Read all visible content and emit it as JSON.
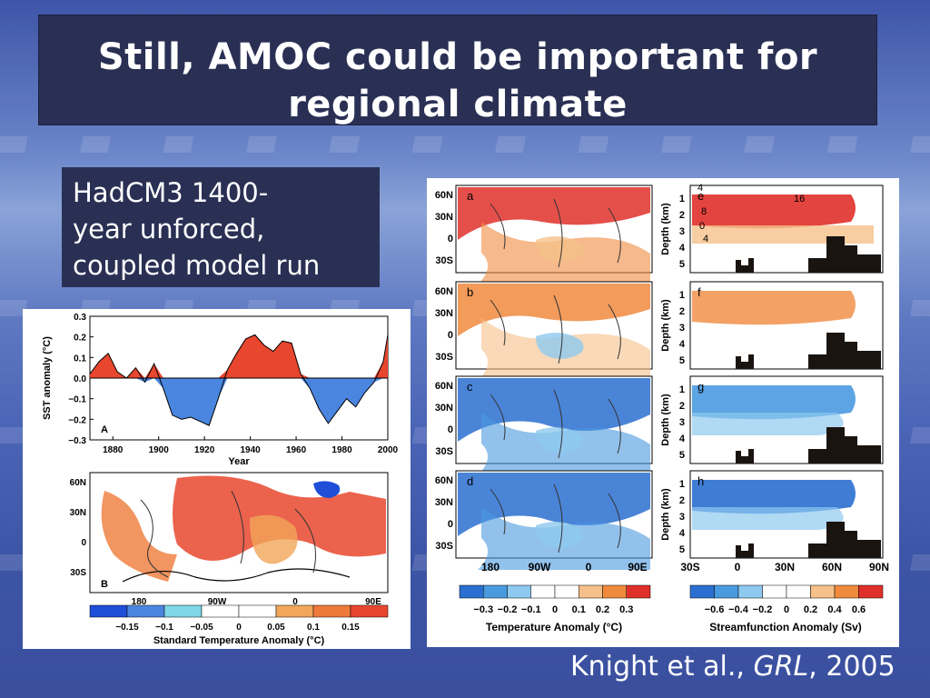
{
  "slide": {
    "title_line1": "Still, AMOC could be important for",
    "title_line2": "regional climate",
    "subtitle_line1": "HadCM3 1400-",
    "subtitle_line2": "year unforced,",
    "subtitle_line3": "coupled model run",
    "citation_authors": "Knight et al., ",
    "citation_journal": "GRL",
    "citation_year": ", 2005"
  },
  "colors": {
    "warm": "#e8462e",
    "cool": "#4a86e0",
    "title_bg": "#2a3054"
  },
  "chart_data": [
    {
      "type": "area",
      "panel_label": "A",
      "ylabel": "SST anomaly (°C)",
      "xlabel": "Year",
      "ylim": [
        -0.3,
        0.3
      ],
      "xlim": [
        1870,
        2000
      ],
      "y_ticks": [
        "0.3",
        "0.2",
        "0.1",
        "0.0",
        "−0.1",
        "−0.2",
        "−0.3"
      ],
      "x_ticks": [
        "1880",
        "1900",
        "1920",
        "1940",
        "1960",
        "1980",
        "2000"
      ],
      "x": [
        1870,
        1874,
        1878,
        1882,
        1886,
        1890,
        1894,
        1898,
        1902,
        1906,
        1910,
        1914,
        1918,
        1922,
        1926,
        1930,
        1934,
        1938,
        1942,
        1946,
        1950,
        1954,
        1958,
        1962,
        1966,
        1970,
        1974,
        1978,
        1982,
        1986,
        1990,
        1994,
        1998,
        2000
      ],
      "y": [
        0.02,
        0.08,
        0.12,
        0.03,
        0.0,
        0.05,
        -0.02,
        0.07,
        -0.05,
        -0.18,
        -0.2,
        -0.19,
        -0.21,
        -0.23,
        -0.1,
        0.04,
        0.12,
        0.19,
        0.21,
        0.16,
        0.13,
        0.18,
        0.17,
        0.02,
        -0.05,
        -0.15,
        -0.22,
        -0.16,
        -0.1,
        -0.14,
        -0.07,
        -0.02,
        0.08,
        0.21
      ],
      "positive_color": "#e8462e",
      "negative_color": "#4a86e0"
    },
    {
      "type": "heatmap",
      "panel_label": "B",
      "lat_ticks": [
        "60N",
        "30N",
        "0",
        "30S"
      ],
      "lon_ticks": [
        "180",
        "90W",
        "0",
        "90E"
      ],
      "colorbar_ticks": [
        "−0.15",
        "−0.1",
        "−0.05",
        "0",
        "0.05",
        "0.1",
        "0.15"
      ],
      "colorbar_label": "Standard Temperature Anomaly (°C)",
      "colorbar_colors": [
        "#1f4fd8",
        "#4a86e0",
        "#7fd7e8",
        "#ffffff",
        "#ffffff",
        "#f2a65a",
        "#ee7a3a",
        "#e8462e"
      ]
    },
    {
      "type": "heatmap",
      "panel_labels_left": [
        "a",
        "b",
        "c",
        "d"
      ],
      "panel_labels_right": [
        "e",
        "f",
        "g",
        "h"
      ],
      "lat_ticks": [
        "60N",
        "30N",
        "0",
        "30S"
      ],
      "lon_ticks": [
        "180",
        "90W",
        "0",
        "90E"
      ],
      "depth_label": "Depth (km)",
      "depth_ticks": [
        "1",
        "2",
        "3",
        "4",
        "5"
      ],
      "lat_axis_ticks": [
        "30S",
        "0",
        "30N",
        "60N",
        "90N"
      ],
      "contour_labels": [
        "4",
        "16",
        "8",
        "0",
        "4"
      ],
      "temp_colorbar_ticks": [
        "−0.3",
        "−0.2",
        "−0.1",
        "0",
        "0.1",
        "0.2",
        "0.3"
      ],
      "temp_colorbar_label": "Temperature Anomaly (°C)",
      "stream_colorbar_ticks": [
        "−0.6",
        "−0.4",
        "−0.2",
        "0",
        "0.2",
        "0.4",
        "0.6"
      ],
      "stream_colorbar_label": "Streamfunction Anomaly (Sv)",
      "colorbar_colors": [
        "#2a6fd0",
        "#4a9ae0",
        "#8ec9ef",
        "#ffffff",
        "#ffffff",
        "#f5c089",
        "#f08a3e",
        "#e0302a"
      ]
    }
  ]
}
